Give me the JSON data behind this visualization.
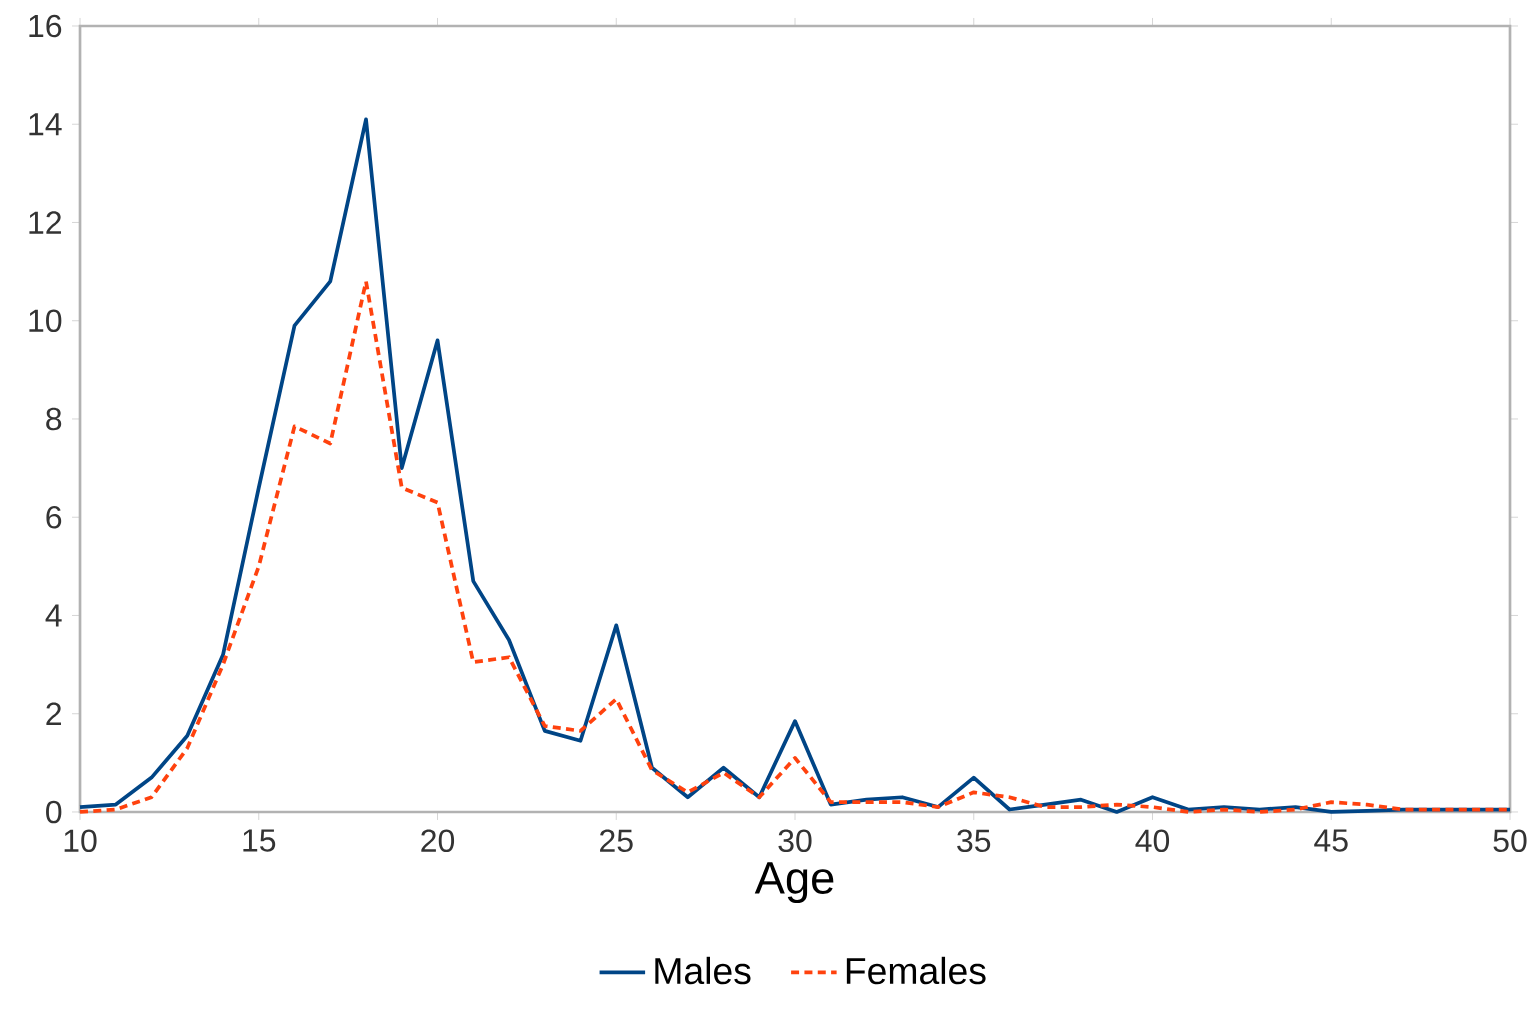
{
  "chart_data": {
    "type": "line",
    "xlabel": "Age",
    "x": [
      10,
      11,
      12,
      13,
      14,
      15,
      16,
      17,
      18,
      19,
      20,
      21,
      22,
      23,
      24,
      25,
      26,
      27,
      28,
      29,
      30,
      31,
      32,
      33,
      34,
      35,
      36,
      37,
      38,
      39,
      40,
      41,
      42,
      43,
      44,
      45,
      46,
      47,
      48,
      49,
      50
    ],
    "series": [
      {
        "name": "Males",
        "color": "#004586",
        "line_style": "solid",
        "values": [
          0.1,
          0.15,
          0.7,
          1.55,
          3.2,
          6.6,
          9.9,
          10.8,
          14.1,
          7.0,
          9.6,
          4.7,
          3.5,
          1.65,
          1.45,
          3.8,
          0.9,
          0.3,
          0.9,
          0.3,
          1.85,
          0.15,
          0.25,
          0.3,
          0.1,
          0.7,
          0.05,
          0.15,
          0.25,
          0,
          0.3,
          0.05,
          0.1,
          0.05,
          0.1,
          0,
          0.02,
          0.05,
          0.05,
          0.05,
          0.05
        ]
      },
      {
        "name": "Females",
        "color": "#ff420e",
        "line_style": "dashed",
        "values": [
          0,
          0.05,
          0.3,
          1.3,
          3.0,
          5.0,
          7.85,
          7.5,
          10.8,
          6.6,
          6.3,
          3.05,
          3.15,
          1.75,
          1.65,
          2.3,
          0.85,
          0.4,
          0.8,
          0.3,
          1.1,
          0.2,
          0.2,
          0.2,
          0.1,
          0.4,
          0.3,
          0.1,
          0.1,
          0.15,
          0.1,
          0,
          0.05,
          0,
          0.05,
          0.2,
          0.15,
          0.05,
          0.05,
          0.05,
          0.05
        ]
      }
    ],
    "xlim": [
      10,
      50
    ],
    "ylim": [
      0,
      16
    ],
    "xticks": [
      10,
      15,
      20,
      25,
      30,
      35,
      40,
      45,
      50
    ],
    "yticks": [
      0,
      2,
      4,
      6,
      8,
      10,
      12,
      14,
      16
    ],
    "grid": false,
    "legend": "bottom",
    "marker": "none"
  }
}
